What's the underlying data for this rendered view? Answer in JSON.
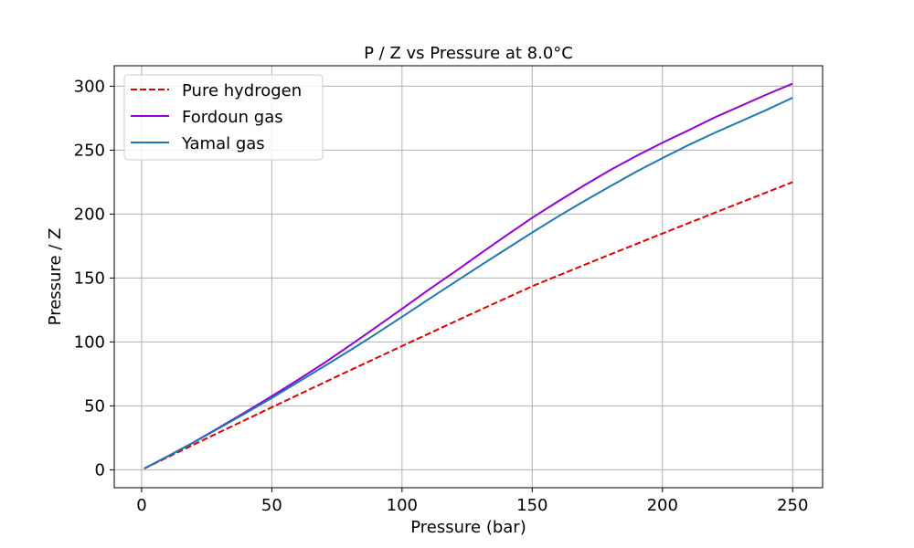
{
  "chart_data": {
    "type": "line",
    "title": "P / Z  vs Pressure at  8.0°C",
    "xlabel": "Pressure (bar)",
    "ylabel": "Pressure / Z",
    "xlim": [
      -10.5,
      261.5
    ],
    "ylim": [
      -14,
      316
    ],
    "xticks": [
      0,
      50,
      100,
      150,
      200,
      250
    ],
    "yticks": [
      0,
      50,
      100,
      150,
      200,
      250,
      300
    ],
    "grid": true,
    "legend_position": "upper-left",
    "series": [
      {
        "name": "Pure hydrogen",
        "color": "#dd0000",
        "dash": "dashed",
        "x": [
          1,
          25,
          50,
          75,
          100,
          125,
          150,
          175,
          200,
          225,
          250
        ],
        "y": [
          1,
          24.6,
          48.9,
          73,
          96.8,
          120.4,
          143.6,
          164.4,
          184.8,
          205,
          225
        ]
      },
      {
        "name": "Fordoun gas",
        "color": "#9400d3",
        "dash": "solid",
        "x": [
          1,
          10,
          20,
          30,
          40,
          50,
          60,
          70,
          80,
          90,
          100,
          110,
          120,
          130,
          140,
          150,
          160,
          170,
          180,
          190,
          200,
          210,
          220,
          230,
          240,
          250
        ],
        "y": [
          1,
          10.5,
          21.5,
          33.3,
          45.3,
          57.6,
          70.3,
          83.4,
          97.3,
          111.5,
          125.9,
          140.5,
          154.5,
          169,
          183.2,
          197.1,
          210,
          222.5,
          234.5,
          245.5,
          255.8,
          265.5,
          275.5,
          284.5,
          293.5,
          302
        ]
      },
      {
        "name": "Yamal gas",
        "color": "#1f77b4",
        "dash": "solid",
        "x": [
          1,
          10,
          20,
          30,
          40,
          50,
          60,
          70,
          80,
          90,
          100,
          110,
          120,
          130,
          140,
          150,
          160,
          170,
          180,
          190,
          200,
          210,
          220,
          230,
          240,
          250
        ],
        "y": [
          1,
          10.5,
          21.4,
          32.9,
          44.4,
          56.2,
          68.5,
          80.8,
          93.4,
          106.3,
          119.6,
          133.1,
          146.4,
          159.6,
          172.6,
          185.6,
          198.2,
          210.2,
          221.8,
          233.2,
          243.8,
          254,
          263.5,
          272.5,
          281.5,
          291
        ]
      }
    ]
  }
}
